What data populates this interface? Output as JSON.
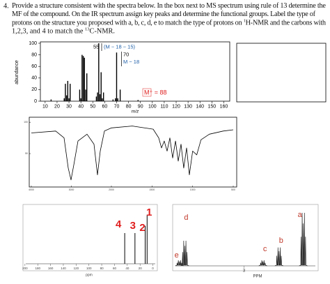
{
  "question": {
    "number": "4.",
    "lines": [
      [
        {
          "text": "Provide a structure consistent with the spectra below. In the box next to MS spectrum using rule of 13 determine the"
        }
      ],
      [
        {
          "text": "MF of the compound. On the IR spectrum assign key peaks and determine the functional groups. Label the type of"
        }
      ],
      [
        {
          "text": "protons on the structure you proposed with a, b, c, d, e to match the type of protons on "
        },
        {
          "text": "1",
          "sup": true
        },
        {
          "text": "H-NMR and the carbons with"
        }
      ],
      [
        {
          "text": "1,2,3, and 4 to match the "
        },
        {
          "text": "13",
          "sup": true
        },
        {
          "text": "C-NMR."
        }
      ]
    ]
  },
  "ms_spectrum": {
    "type": "bar",
    "ylabel": "abundance",
    "xlabel": "m/z",
    "color": "#000000",
    "x": [
      15,
      26,
      27,
      28,
      29,
      30,
      31,
      39,
      40,
      41,
      42,
      43,
      44,
      45,
      53,
      54,
      55,
      56,
      57,
      58,
      59,
      67,
      69,
      70,
      71,
      73,
      88
    ],
    "values": [
      3,
      5,
      30,
      10,
      35,
      5,
      30,
      20,
      5,
      80,
      78,
      75,
      20,
      48,
      8,
      15,
      100,
      12,
      50,
      5,
      15,
      3,
      5,
      84,
      5,
      20,
      2
    ],
    "xlim": [
      6,
      165
    ],
    "ylim": [
      0,
      100
    ],
    "xticks": [
      10,
      20,
      30,
      40,
      50,
      60,
      70,
      80,
      90,
      100,
      110,
      120,
      130,
      140,
      150,
      160
    ],
    "yticks": [
      0,
      20,
      40,
      60,
      80,
      100
    ],
    "annotations": [
      "55",
      "(M − 18 − 15)",
      "70",
      "M − 18",
      "M⁺ = 88"
    ]
  },
  "ir_spectrum": {
    "type": "line",
    "color": "#000000",
    "x": [
      4000,
      3391,
      3183,
      3078,
      3009,
      2939,
      2835,
      2609,
      2435,
      2348,
      2278,
      2174,
      2000,
      1743,
      1486,
      1417,
      1383,
      1349,
      1314,
      1280,
      1246,
      1211,
      1177,
      1143,
      1109,
      1074,
      1040,
      1000,
      949,
      897,
      794,
      623,
      500
    ],
    "values": [
      83,
      86,
      75,
      27,
      8,
      32,
      70,
      81,
      65,
      16,
      54,
      86,
      91,
      94,
      89,
      75,
      59,
      70,
      54,
      75,
      43,
      70,
      38,
      65,
      27,
      59,
      16,
      54,
      48,
      72,
      81,
      86,
      88
    ],
    "xlim": [
      4000,
      500
    ],
    "x_scale_break": 2000,
    "ylim": [
      0,
      108
    ],
    "xticks": [
      4000,
      3000,
      2000,
      1500,
      1000,
      500
    ],
    "yticks": [
      50,
      100
    ]
  },
  "c13_nmr": {
    "type": "stick",
    "xlabel": "ppm",
    "xlim": [
      202,
      -7
    ],
    "ylim": [
      0,
      100
    ],
    "xticks": [
      200,
      180,
      160,
      140,
      120,
      100,
      80,
      60,
      40,
      20,
      0
    ],
    "label_color": "#e02020",
    "peaks": [
      {
        "label": "4",
        "ppm": 44,
        "height": 55
      },
      {
        "label": "3",
        "ppm": 28,
        "height": 55
      },
      {
        "label": "2",
        "ppm": 12,
        "height": 68
      },
      {
        "label": "1",
        "ppm": 9,
        "height": 88
      }
    ]
  },
  "h1_nmr": {
    "type": "multiplet",
    "xlabel": "PPM",
    "xlim": [
      5.6,
      0.3
    ],
    "ylim": [
      0,
      100
    ],
    "xticks": [
      3
    ],
    "label_color": "#c0392b",
    "peaks": [
      {
        "label": "e",
        "ppm": 5.4,
        "height": 10
      },
      {
        "label": "d",
        "ppm": 5.2,
        "height": 45
      },
      {
        "label": "c",
        "ppm": 2.3,
        "height": 10
      },
      {
        "label": "b",
        "ppm": 1.7,
        "height": 33
      },
      {
        "label": "a",
        "ppm": 0.8,
        "height": 95
      }
    ]
  }
}
